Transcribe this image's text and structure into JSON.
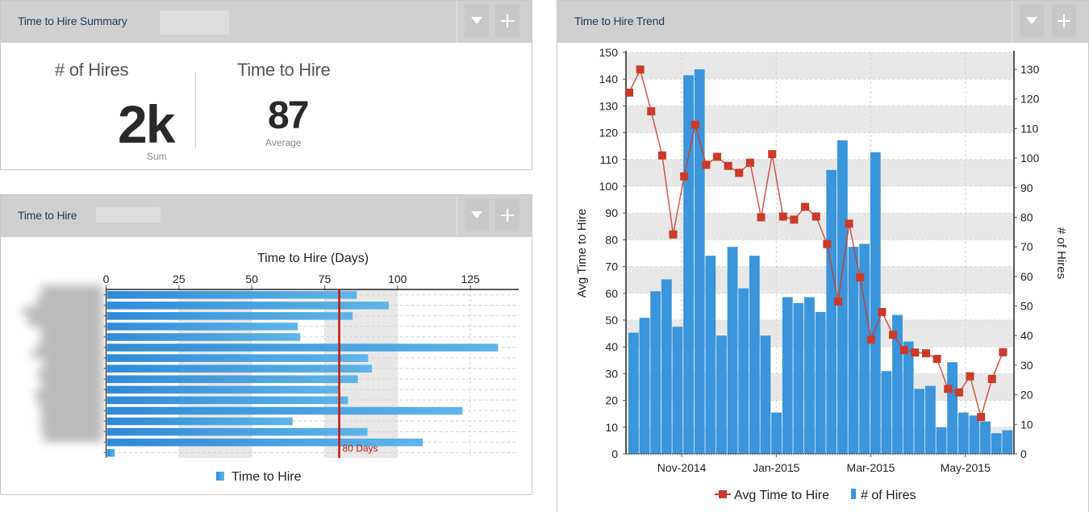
{
  "panels": {
    "summary": {
      "title": "Time to Hire Summary",
      "kpis": [
        {
          "label": "# of Hires",
          "value": "2k",
          "sub": "Sum"
        },
        {
          "label": "Time to Hire",
          "value": "87",
          "sub": "Average"
        }
      ]
    },
    "byCategory": {
      "title": "Time to Hire"
    },
    "trend": {
      "title": "Time to Hire Trend"
    }
  },
  "header_buttons": {
    "dropdown_icon": "caret-down-icon",
    "add_icon": "plus-icon"
  },
  "colors": {
    "bar": "#3a95db",
    "line": "#cc3a2a",
    "header_bg": "#d0d0d0",
    "title": "#1e3a56",
    "band": "#e8e8e8",
    "reference_line": "#cc1111"
  },
  "chart_data": [
    {
      "type": "bar",
      "orientation": "horizontal",
      "title": "Time to Hire (Days)",
      "xlabel": "Time to Hire (Days)",
      "xlim": [
        0,
        137
      ],
      "xticks": [
        0,
        25,
        50,
        75,
        100,
        125
      ],
      "categories_redacted": true,
      "series": [
        {
          "name": "Time to Hire",
          "values": [
            86,
            97,
            84.6,
            65.8,
            66.6,
            134.5,
            89.9,
            91.2,
            86.4,
            80,
            83,
            122.3,
            64,
            89.7,
            108.7,
            3
          ]
        }
      ],
      "reference_line": {
        "value": 80,
        "label": "80 Days"
      },
      "shaded_bands": [
        [
          25,
          50
        ],
        [
          75,
          100
        ]
      ],
      "legend": {
        "position": "bottom",
        "entries": [
          "Time to Hire"
        ]
      },
      "grid": true
    },
    {
      "type": "bar+line",
      "title": "Time to Hire Trend",
      "xlabel": "",
      "ylabel_left": "Avg Time to Hire",
      "ylabel_right": "# of Hires",
      "ylim_left": [
        0,
        150
      ],
      "ylim_right": [
        0,
        136
      ],
      "yticks_left": [
        0,
        10,
        20,
        30,
        40,
        50,
        60,
        70,
        80,
        90,
        100,
        110,
        120,
        130,
        140,
        150
      ],
      "yticks_right": [
        0,
        10,
        20,
        30,
        40,
        50,
        60,
        70,
        80,
        90,
        100,
        110,
        120,
        130
      ],
      "x_tick_labels": [
        {
          "label": "Nov-2014",
          "index": 4.85
        },
        {
          "label": "Jan-2015",
          "index": 13.45
        },
        {
          "label": "Mar-2015",
          "index": 22.05
        },
        {
          "label": "May-2015",
          "index": 30.65
        }
      ],
      "series": [
        {
          "name": "Avg Time to Hire",
          "type": "line",
          "axis": "left",
          "values": [
            135,
            143.6,
            128,
            111.5,
            82,
            103.7,
            123,
            108,
            111,
            107.6,
            105,
            108.8,
            88.4,
            112,
            88.7,
            87.5,
            92.3,
            88.7,
            78.4,
            57,
            86,
            66,
            42.7,
            53,
            44.5,
            38.8,
            37.9,
            37.6,
            35.5,
            24.3,
            23,
            29,
            13.8,
            28,
            38
          ]
        },
        {
          "name": "# of Hires",
          "type": "bar",
          "axis": "right",
          "values": [
            41,
            46,
            55,
            59,
            43,
            128,
            130,
            67,
            40,
            70,
            56,
            67,
            40,
            14,
            53,
            51,
            53,
            48,
            96,
            106,
            70,
            71,
            102,
            28,
            47,
            38,
            22,
            23,
            9,
            31,
            14,
            13,
            11,
            7,
            8
          ]
        }
      ],
      "legend": {
        "position": "bottom",
        "entries": [
          "Avg Time to Hire",
          "# of Hires"
        ]
      },
      "grid": true
    }
  ]
}
